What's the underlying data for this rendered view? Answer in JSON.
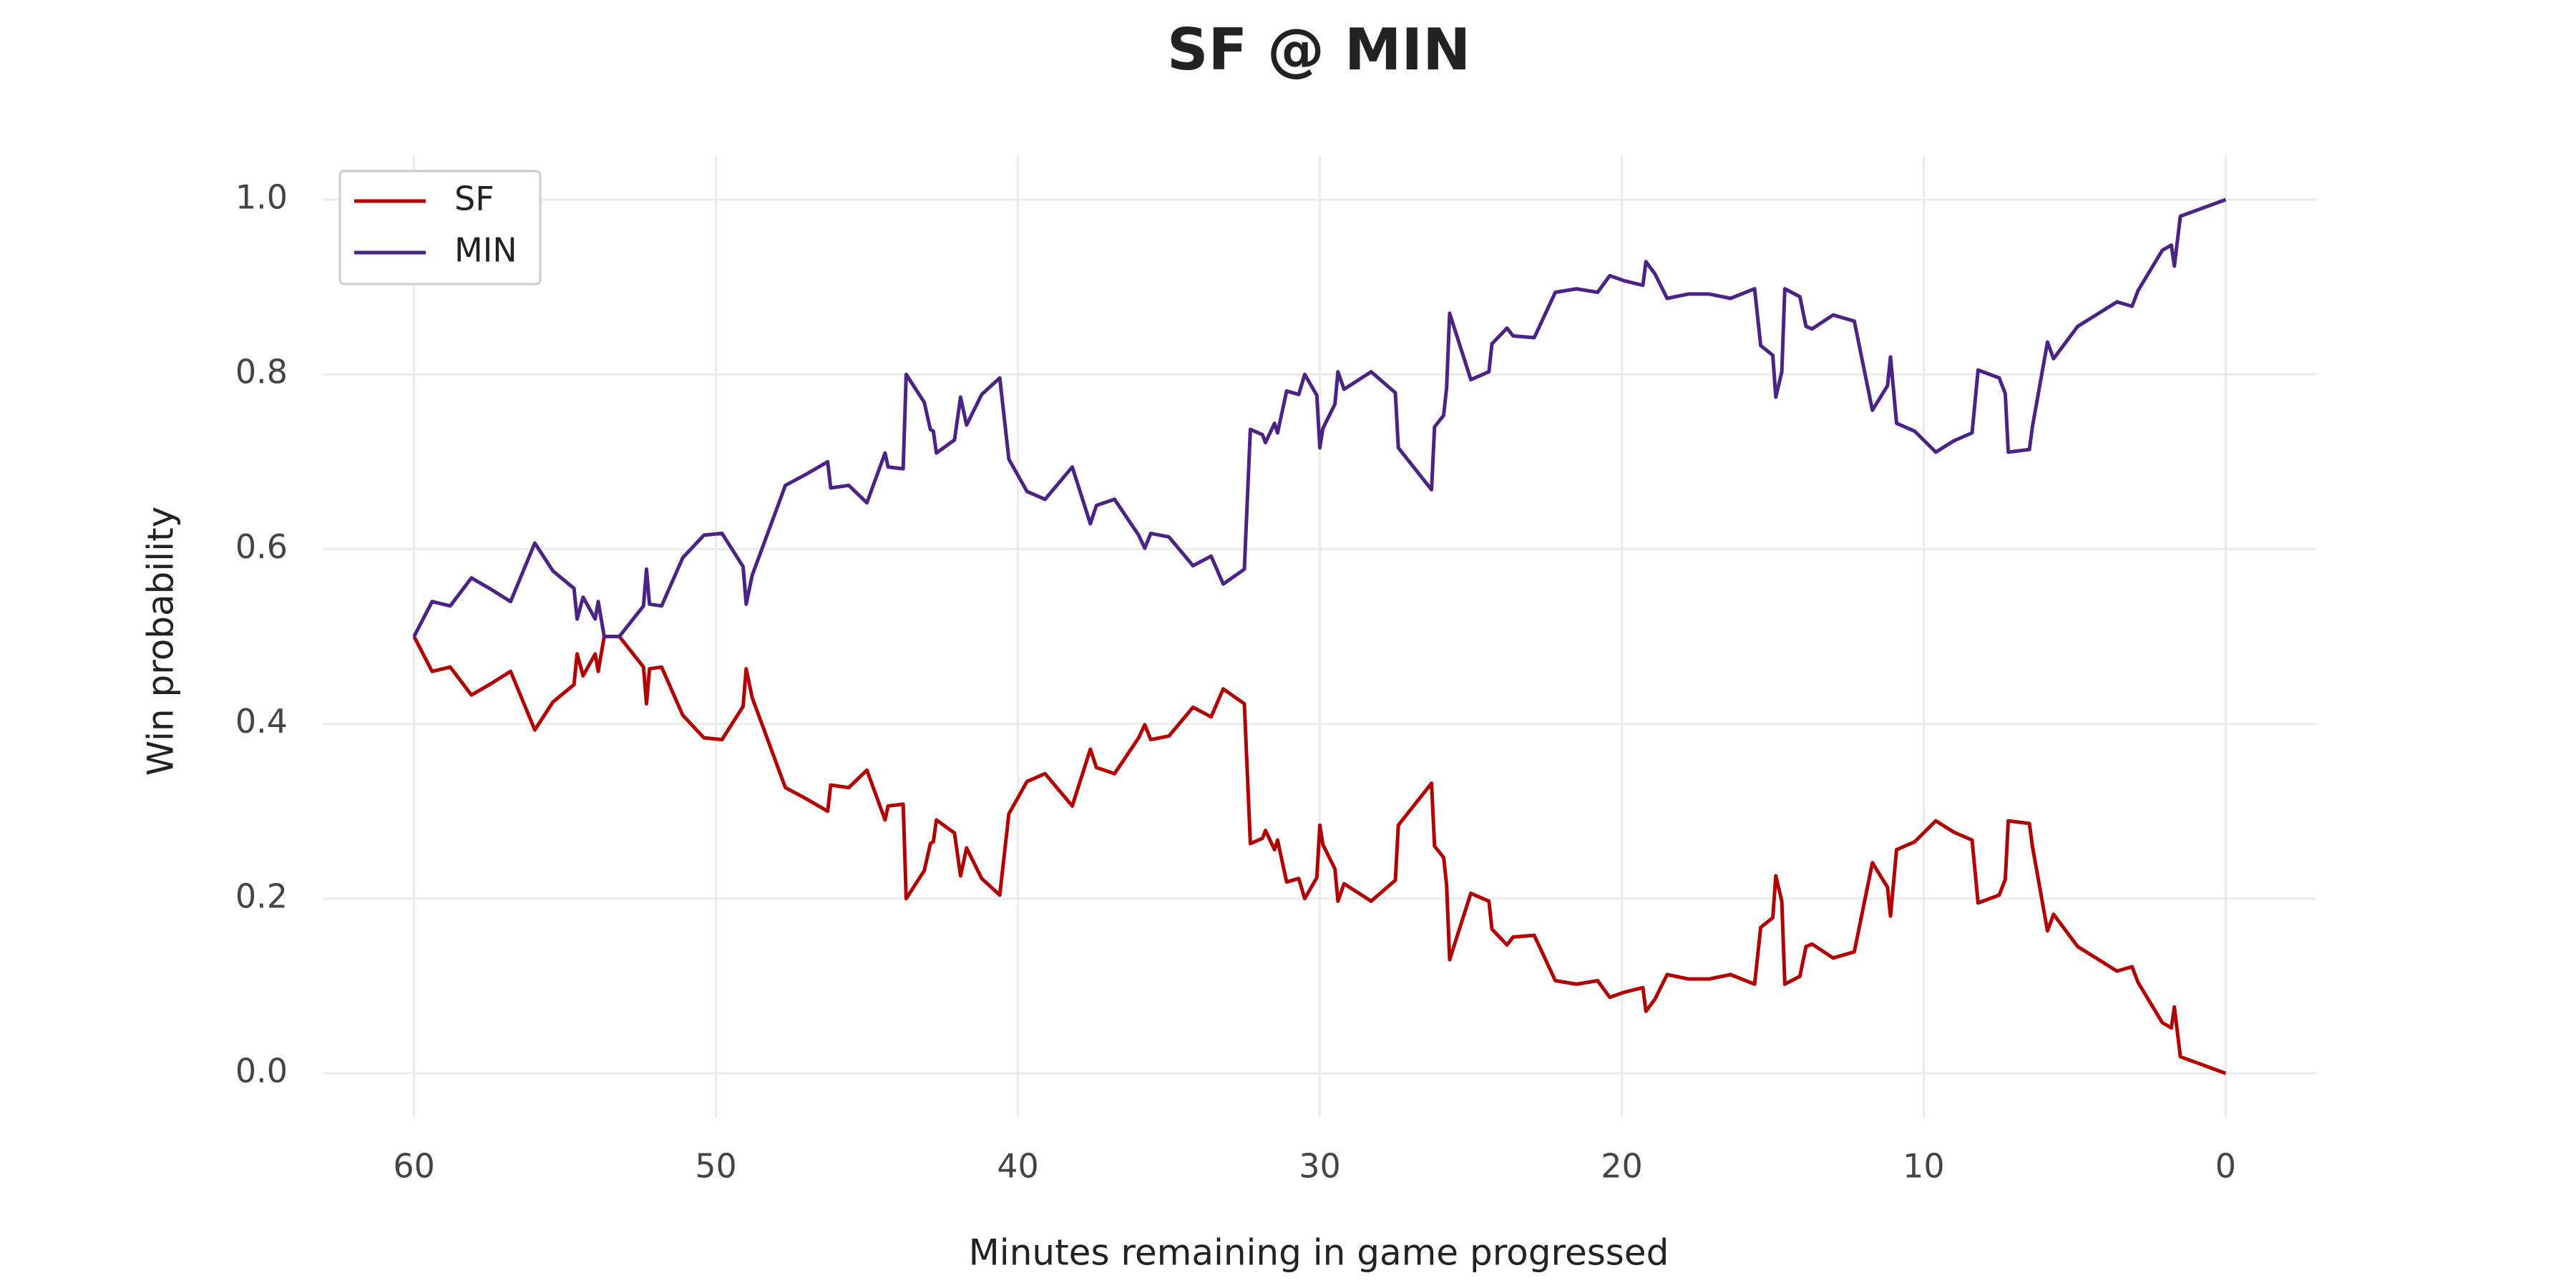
{
  "chart_data": {
    "type": "line",
    "title": "SF @ MIN",
    "xlabel": "Minutes remaining in game progressed",
    "ylabel": "Win probability",
    "xlim": [
      63,
      -3
    ],
    "ylim": [
      -0.05,
      1.05
    ],
    "xticks": [
      60,
      50,
      40,
      30,
      20,
      10,
      0
    ],
    "yticks": [
      {
        "value": 0,
        "label": "0.0"
      },
      0.2,
      0.4,
      0.6,
      0.8,
      {
        "value": 1,
        "label": "1.0"
      }
    ],
    "grid": true,
    "legend": "upper left",
    "x": [
      60,
      59.4,
      58.8,
      58.1,
      57.5,
      56.8,
      56.0,
      55.4,
      54.7,
      54.6,
      54.4,
      54.0,
      53.9,
      53.7,
      53.2,
      52.4,
      52.3,
      52.2,
      51.8,
      51.1,
      50.4,
      49.8,
      49.1,
      49.0,
      48.8,
      47.7,
      47.0,
      46.3,
      46.2,
      45.6,
      45.0,
      44.4,
      44.3,
      43.8,
      43.7,
      43.1,
      42.9,
      42.8,
      42.7,
      42.1,
      41.9,
      41.7,
      41.2,
      40.6,
      40.3,
      39.7,
      39.1,
      38.2,
      37.6,
      37.4,
      36.8,
      36.0,
      35.8,
      35.6,
      35.0,
      34.2,
      33.6,
      33.2,
      32.5,
      32.3,
      31.9,
      31.8,
      31.5,
      31.4,
      31.1,
      30.7,
      30.5,
      30.1,
      30.0,
      29.9,
      29.5,
      29.4,
      29.2,
      28.3,
      27.5,
      27.4,
      26.3,
      26.2,
      25.9,
      25.8,
      25.7,
      25.0,
      24.4,
      24.3,
      23.8,
      23.6,
      22.9,
      22.2,
      21.5,
      20.8,
      20.4,
      19.9,
      19.3,
      19.2,
      18.9,
      18.5,
      17.8,
      17.1,
      16.4,
      15.6,
      15.4,
      15.0,
      14.9,
      14.7,
      14.6,
      14.1,
      13.9,
      13.7,
      13.0,
      12.3,
      11.7,
      11.2,
      11.1,
      10.9,
      10.3,
      9.6,
      9.0,
      8.4,
      8.2,
      7.5,
      7.3,
      7.2,
      6.5,
      6.4,
      5.9,
      5.7,
      4.9,
      3.6,
      3.1,
      2.9,
      2.1,
      1.8,
      1.7,
      1.5,
      0
    ],
    "series": [
      {
        "name": "SF",
        "color": "#b00000",
        "values": [
          0.5,
          0.46,
          0.465,
          0.433,
          0.445,
          0.46,
          0.393,
          0.425,
          0.445,
          0.48,
          0.455,
          0.48,
          0.46,
          0.5,
          0.5,
          0.465,
          0.423,
          0.463,
          0.465,
          0.41,
          0.384,
          0.382,
          0.42,
          0.463,
          0.43,
          0.327,
          0.314,
          0.3,
          0.33,
          0.327,
          0.347,
          0.29,
          0.306,
          0.308,
          0.2,
          0.232,
          0.263,
          0.265,
          0.29,
          0.275,
          0.226,
          0.258,
          0.223,
          0.204,
          0.297,
          0.334,
          0.343,
          0.306,
          0.371,
          0.35,
          0.343,
          0.384,
          0.399,
          0.382,
          0.386,
          0.419,
          0.408,
          0.44,
          0.423,
          0.263,
          0.269,
          0.278,
          0.256,
          0.267,
          0.219,
          0.223,
          0.2,
          0.224,
          0.284,
          0.262,
          0.234,
          0.197,
          0.217,
          0.197,
          0.221,
          0.284,
          0.332,
          0.26,
          0.247,
          0.215,
          0.13,
          0.206,
          0.197,
          0.165,
          0.147,
          0.156,
          0.158,
          0.106,
          0.102,
          0.106,
          0.087,
          0.093,
          0.098,
          0.071,
          0.085,
          0.113,
          0.108,
          0.108,
          0.113,
          0.102,
          0.167,
          0.178,
          0.226,
          0.197,
          0.102,
          0.111,
          0.145,
          0.148,
          0.132,
          0.139,
          0.241,
          0.213,
          0.18,
          0.256,
          0.265,
          0.289,
          0.276,
          0.267,
          0.195,
          0.204,
          0.222,
          0.289,
          0.286,
          0.26,
          0.163,
          0.182,
          0.145,
          0.117,
          0.122,
          0.104,
          0.058,
          0.052,
          0.076,
          0.019,
          0.0
        ]
      },
      {
        "name": "MIN",
        "color": "#4b2384",
        "values": [
          0.5,
          0.54,
          0.535,
          0.567,
          0.555,
          0.54,
          0.607,
          0.575,
          0.555,
          0.52,
          0.545,
          0.52,
          0.54,
          0.5,
          0.5,
          0.535,
          0.577,
          0.537,
          0.535,
          0.59,
          0.616,
          0.618,
          0.58,
          0.537,
          0.57,
          0.673,
          0.686,
          0.7,
          0.67,
          0.673,
          0.653,
          0.71,
          0.694,
          0.692,
          0.8,
          0.768,
          0.737,
          0.735,
          0.71,
          0.725,
          0.774,
          0.742,
          0.777,
          0.796,
          0.703,
          0.666,
          0.657,
          0.694,
          0.629,
          0.65,
          0.657,
          0.616,
          0.601,
          0.618,
          0.614,
          0.581,
          0.592,
          0.56,
          0.577,
          0.737,
          0.731,
          0.722,
          0.744,
          0.733,
          0.781,
          0.777,
          0.8,
          0.776,
          0.716,
          0.738,
          0.766,
          0.803,
          0.783,
          0.803,
          0.779,
          0.716,
          0.668,
          0.74,
          0.753,
          0.785,
          0.87,
          0.794,
          0.803,
          0.835,
          0.853,
          0.844,
          0.842,
          0.894,
          0.898,
          0.894,
          0.913,
          0.907,
          0.902,
          0.929,
          0.915,
          0.887,
          0.892,
          0.892,
          0.887,
          0.898,
          0.833,
          0.822,
          0.774,
          0.803,
          0.898,
          0.889,
          0.855,
          0.852,
          0.868,
          0.861,
          0.759,
          0.787,
          0.82,
          0.744,
          0.735,
          0.711,
          0.724,
          0.733,
          0.805,
          0.796,
          0.778,
          0.711,
          0.714,
          0.74,
          0.837,
          0.818,
          0.855,
          0.883,
          0.878,
          0.896,
          0.942,
          0.948,
          0.924,
          0.981,
          1.0
        ]
      }
    ]
  }
}
